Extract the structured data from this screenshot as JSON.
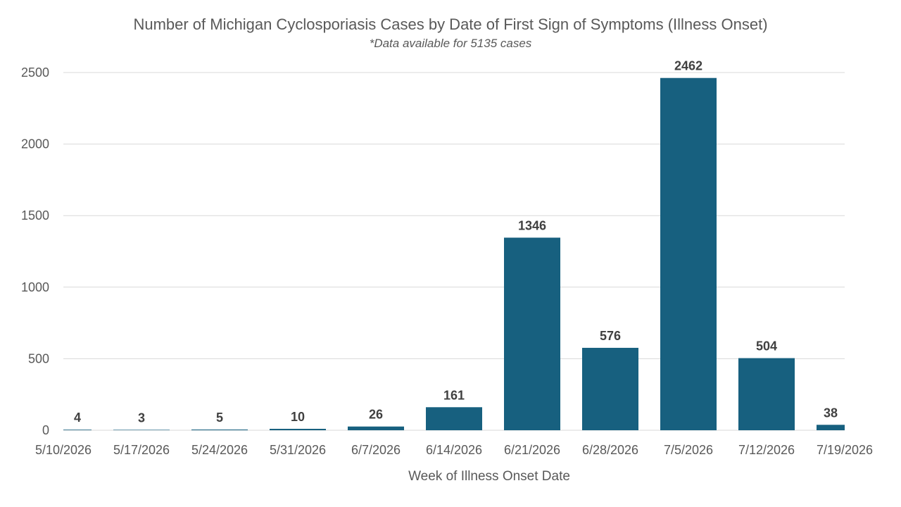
{
  "chart_data": {
    "type": "bar",
    "title": "Number of Michigan Cyclosporiasis Cases by Date of First Sign of Symptoms (Illness Onset)",
    "subtitle": "*Data available for 5135 cases",
    "xlabel": "Week of Illness Onset Date",
    "ylabel": "",
    "categories": [
      "5/10/2026",
      "5/17/2026",
      "5/24/2026",
      "5/31/2026",
      "6/7/2026",
      "6/14/2026",
      "6/21/2026",
      "6/28/2026",
      "7/5/2026",
      "7/12/2026",
      "7/19/2026"
    ],
    "values": [
      4,
      3,
      5,
      10,
      26,
      161,
      1346,
      576,
      2462,
      504,
      38
    ],
    "ylim": [
      0,
      2500
    ],
    "yticks": [
      0,
      500,
      1000,
      1500,
      2000,
      2500
    ],
    "grid": true,
    "legend": "none",
    "bar_color": "#17607f"
  }
}
